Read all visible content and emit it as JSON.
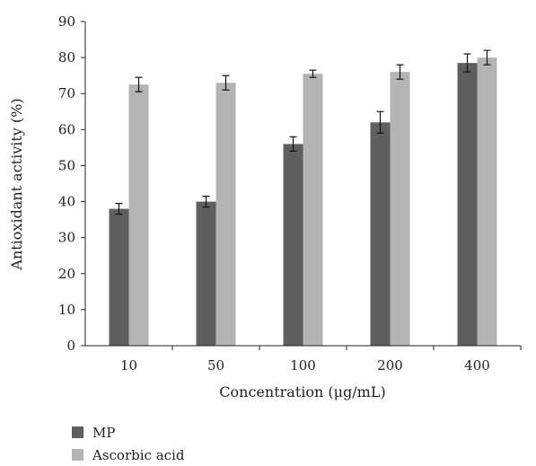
{
  "chart_data": {
    "type": "bar",
    "categories": [
      "10",
      "50",
      "100",
      "200",
      "400"
    ],
    "xlabel": "Concentration (μg/mL)",
    "ylabel": "Antioxidant activity (%)",
    "ylim": [
      0,
      90
    ],
    "yticks": [
      0,
      10,
      20,
      30,
      40,
      50,
      60,
      70,
      80,
      90
    ],
    "grid": false,
    "legend_position": "bottom-left",
    "series": [
      {
        "name": "MP",
        "color": "#5f5f5f",
        "values": [
          38,
          40,
          56,
          62,
          78.5
        ],
        "errors": [
          1.5,
          1.5,
          2,
          3,
          2.5
        ]
      },
      {
        "name": "Ascorbic acid",
        "color": "#b4b4b4",
        "values": [
          72.5,
          73,
          75.5,
          76,
          80
        ],
        "errors": [
          2,
          2,
          1,
          2,
          2
        ]
      }
    ]
  }
}
